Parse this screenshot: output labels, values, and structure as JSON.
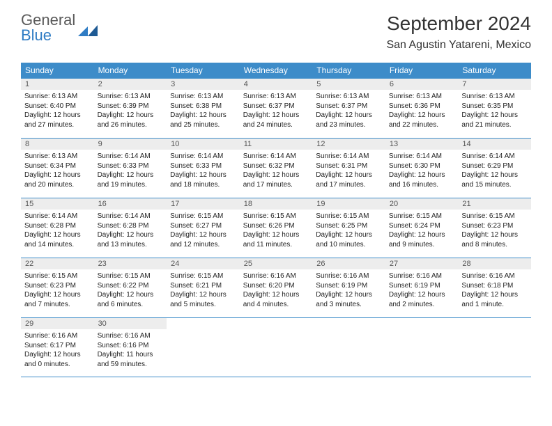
{
  "brand": {
    "line1": "General",
    "line2": "Blue"
  },
  "title": "September 2024",
  "location": "San Agustin Yatareni, Mexico",
  "colors": {
    "header_bg": "#3d8cc9",
    "header_text": "#ffffff",
    "daynum_bg": "#ededed",
    "border": "#3d8cc9",
    "brand_gray": "#5a5a5a",
    "brand_blue": "#2f7cc4"
  },
  "weekdays": [
    "Sunday",
    "Monday",
    "Tuesday",
    "Wednesday",
    "Thursday",
    "Friday",
    "Saturday"
  ],
  "days": [
    {
      "n": "1",
      "sunrise": "Sunrise: 6:13 AM",
      "sunset": "Sunset: 6:40 PM",
      "d1": "Daylight: 12 hours",
      "d2": "and 27 minutes."
    },
    {
      "n": "2",
      "sunrise": "Sunrise: 6:13 AM",
      "sunset": "Sunset: 6:39 PM",
      "d1": "Daylight: 12 hours",
      "d2": "and 26 minutes."
    },
    {
      "n": "3",
      "sunrise": "Sunrise: 6:13 AM",
      "sunset": "Sunset: 6:38 PM",
      "d1": "Daylight: 12 hours",
      "d2": "and 25 minutes."
    },
    {
      "n": "4",
      "sunrise": "Sunrise: 6:13 AM",
      "sunset": "Sunset: 6:37 PM",
      "d1": "Daylight: 12 hours",
      "d2": "and 24 minutes."
    },
    {
      "n": "5",
      "sunrise": "Sunrise: 6:13 AM",
      "sunset": "Sunset: 6:37 PM",
      "d1": "Daylight: 12 hours",
      "d2": "and 23 minutes."
    },
    {
      "n": "6",
      "sunrise": "Sunrise: 6:13 AM",
      "sunset": "Sunset: 6:36 PM",
      "d1": "Daylight: 12 hours",
      "d2": "and 22 minutes."
    },
    {
      "n": "7",
      "sunrise": "Sunrise: 6:13 AM",
      "sunset": "Sunset: 6:35 PM",
      "d1": "Daylight: 12 hours",
      "d2": "and 21 minutes."
    },
    {
      "n": "8",
      "sunrise": "Sunrise: 6:13 AM",
      "sunset": "Sunset: 6:34 PM",
      "d1": "Daylight: 12 hours",
      "d2": "and 20 minutes."
    },
    {
      "n": "9",
      "sunrise": "Sunrise: 6:14 AM",
      "sunset": "Sunset: 6:33 PM",
      "d1": "Daylight: 12 hours",
      "d2": "and 19 minutes."
    },
    {
      "n": "10",
      "sunrise": "Sunrise: 6:14 AM",
      "sunset": "Sunset: 6:33 PM",
      "d1": "Daylight: 12 hours",
      "d2": "and 18 minutes."
    },
    {
      "n": "11",
      "sunrise": "Sunrise: 6:14 AM",
      "sunset": "Sunset: 6:32 PM",
      "d1": "Daylight: 12 hours",
      "d2": "and 17 minutes."
    },
    {
      "n": "12",
      "sunrise": "Sunrise: 6:14 AM",
      "sunset": "Sunset: 6:31 PM",
      "d1": "Daylight: 12 hours",
      "d2": "and 17 minutes."
    },
    {
      "n": "13",
      "sunrise": "Sunrise: 6:14 AM",
      "sunset": "Sunset: 6:30 PM",
      "d1": "Daylight: 12 hours",
      "d2": "and 16 minutes."
    },
    {
      "n": "14",
      "sunrise": "Sunrise: 6:14 AM",
      "sunset": "Sunset: 6:29 PM",
      "d1": "Daylight: 12 hours",
      "d2": "and 15 minutes."
    },
    {
      "n": "15",
      "sunrise": "Sunrise: 6:14 AM",
      "sunset": "Sunset: 6:28 PM",
      "d1": "Daylight: 12 hours",
      "d2": "and 14 minutes."
    },
    {
      "n": "16",
      "sunrise": "Sunrise: 6:14 AM",
      "sunset": "Sunset: 6:28 PM",
      "d1": "Daylight: 12 hours",
      "d2": "and 13 minutes."
    },
    {
      "n": "17",
      "sunrise": "Sunrise: 6:15 AM",
      "sunset": "Sunset: 6:27 PM",
      "d1": "Daylight: 12 hours",
      "d2": "and 12 minutes."
    },
    {
      "n": "18",
      "sunrise": "Sunrise: 6:15 AM",
      "sunset": "Sunset: 6:26 PM",
      "d1": "Daylight: 12 hours",
      "d2": "and 11 minutes."
    },
    {
      "n": "19",
      "sunrise": "Sunrise: 6:15 AM",
      "sunset": "Sunset: 6:25 PM",
      "d1": "Daylight: 12 hours",
      "d2": "and 10 minutes."
    },
    {
      "n": "20",
      "sunrise": "Sunrise: 6:15 AM",
      "sunset": "Sunset: 6:24 PM",
      "d1": "Daylight: 12 hours",
      "d2": "and 9 minutes."
    },
    {
      "n": "21",
      "sunrise": "Sunrise: 6:15 AM",
      "sunset": "Sunset: 6:23 PM",
      "d1": "Daylight: 12 hours",
      "d2": "and 8 minutes."
    },
    {
      "n": "22",
      "sunrise": "Sunrise: 6:15 AM",
      "sunset": "Sunset: 6:23 PM",
      "d1": "Daylight: 12 hours",
      "d2": "and 7 minutes."
    },
    {
      "n": "23",
      "sunrise": "Sunrise: 6:15 AM",
      "sunset": "Sunset: 6:22 PM",
      "d1": "Daylight: 12 hours",
      "d2": "and 6 minutes."
    },
    {
      "n": "24",
      "sunrise": "Sunrise: 6:15 AM",
      "sunset": "Sunset: 6:21 PM",
      "d1": "Daylight: 12 hours",
      "d2": "and 5 minutes."
    },
    {
      "n": "25",
      "sunrise": "Sunrise: 6:16 AM",
      "sunset": "Sunset: 6:20 PM",
      "d1": "Daylight: 12 hours",
      "d2": "and 4 minutes."
    },
    {
      "n": "26",
      "sunrise": "Sunrise: 6:16 AM",
      "sunset": "Sunset: 6:19 PM",
      "d1": "Daylight: 12 hours",
      "d2": "and 3 minutes."
    },
    {
      "n": "27",
      "sunrise": "Sunrise: 6:16 AM",
      "sunset": "Sunset: 6:19 PM",
      "d1": "Daylight: 12 hours",
      "d2": "and 2 minutes."
    },
    {
      "n": "28",
      "sunrise": "Sunrise: 6:16 AM",
      "sunset": "Sunset: 6:18 PM",
      "d1": "Daylight: 12 hours",
      "d2": "and 1 minute."
    },
    {
      "n": "29",
      "sunrise": "Sunrise: 6:16 AM",
      "sunset": "Sunset: 6:17 PM",
      "d1": "Daylight: 12 hours",
      "d2": "and 0 minutes."
    },
    {
      "n": "30",
      "sunrise": "Sunrise: 6:16 AM",
      "sunset": "Sunset: 6:16 PM",
      "d1": "Daylight: 11 hours",
      "d2": "and 59 minutes."
    }
  ]
}
